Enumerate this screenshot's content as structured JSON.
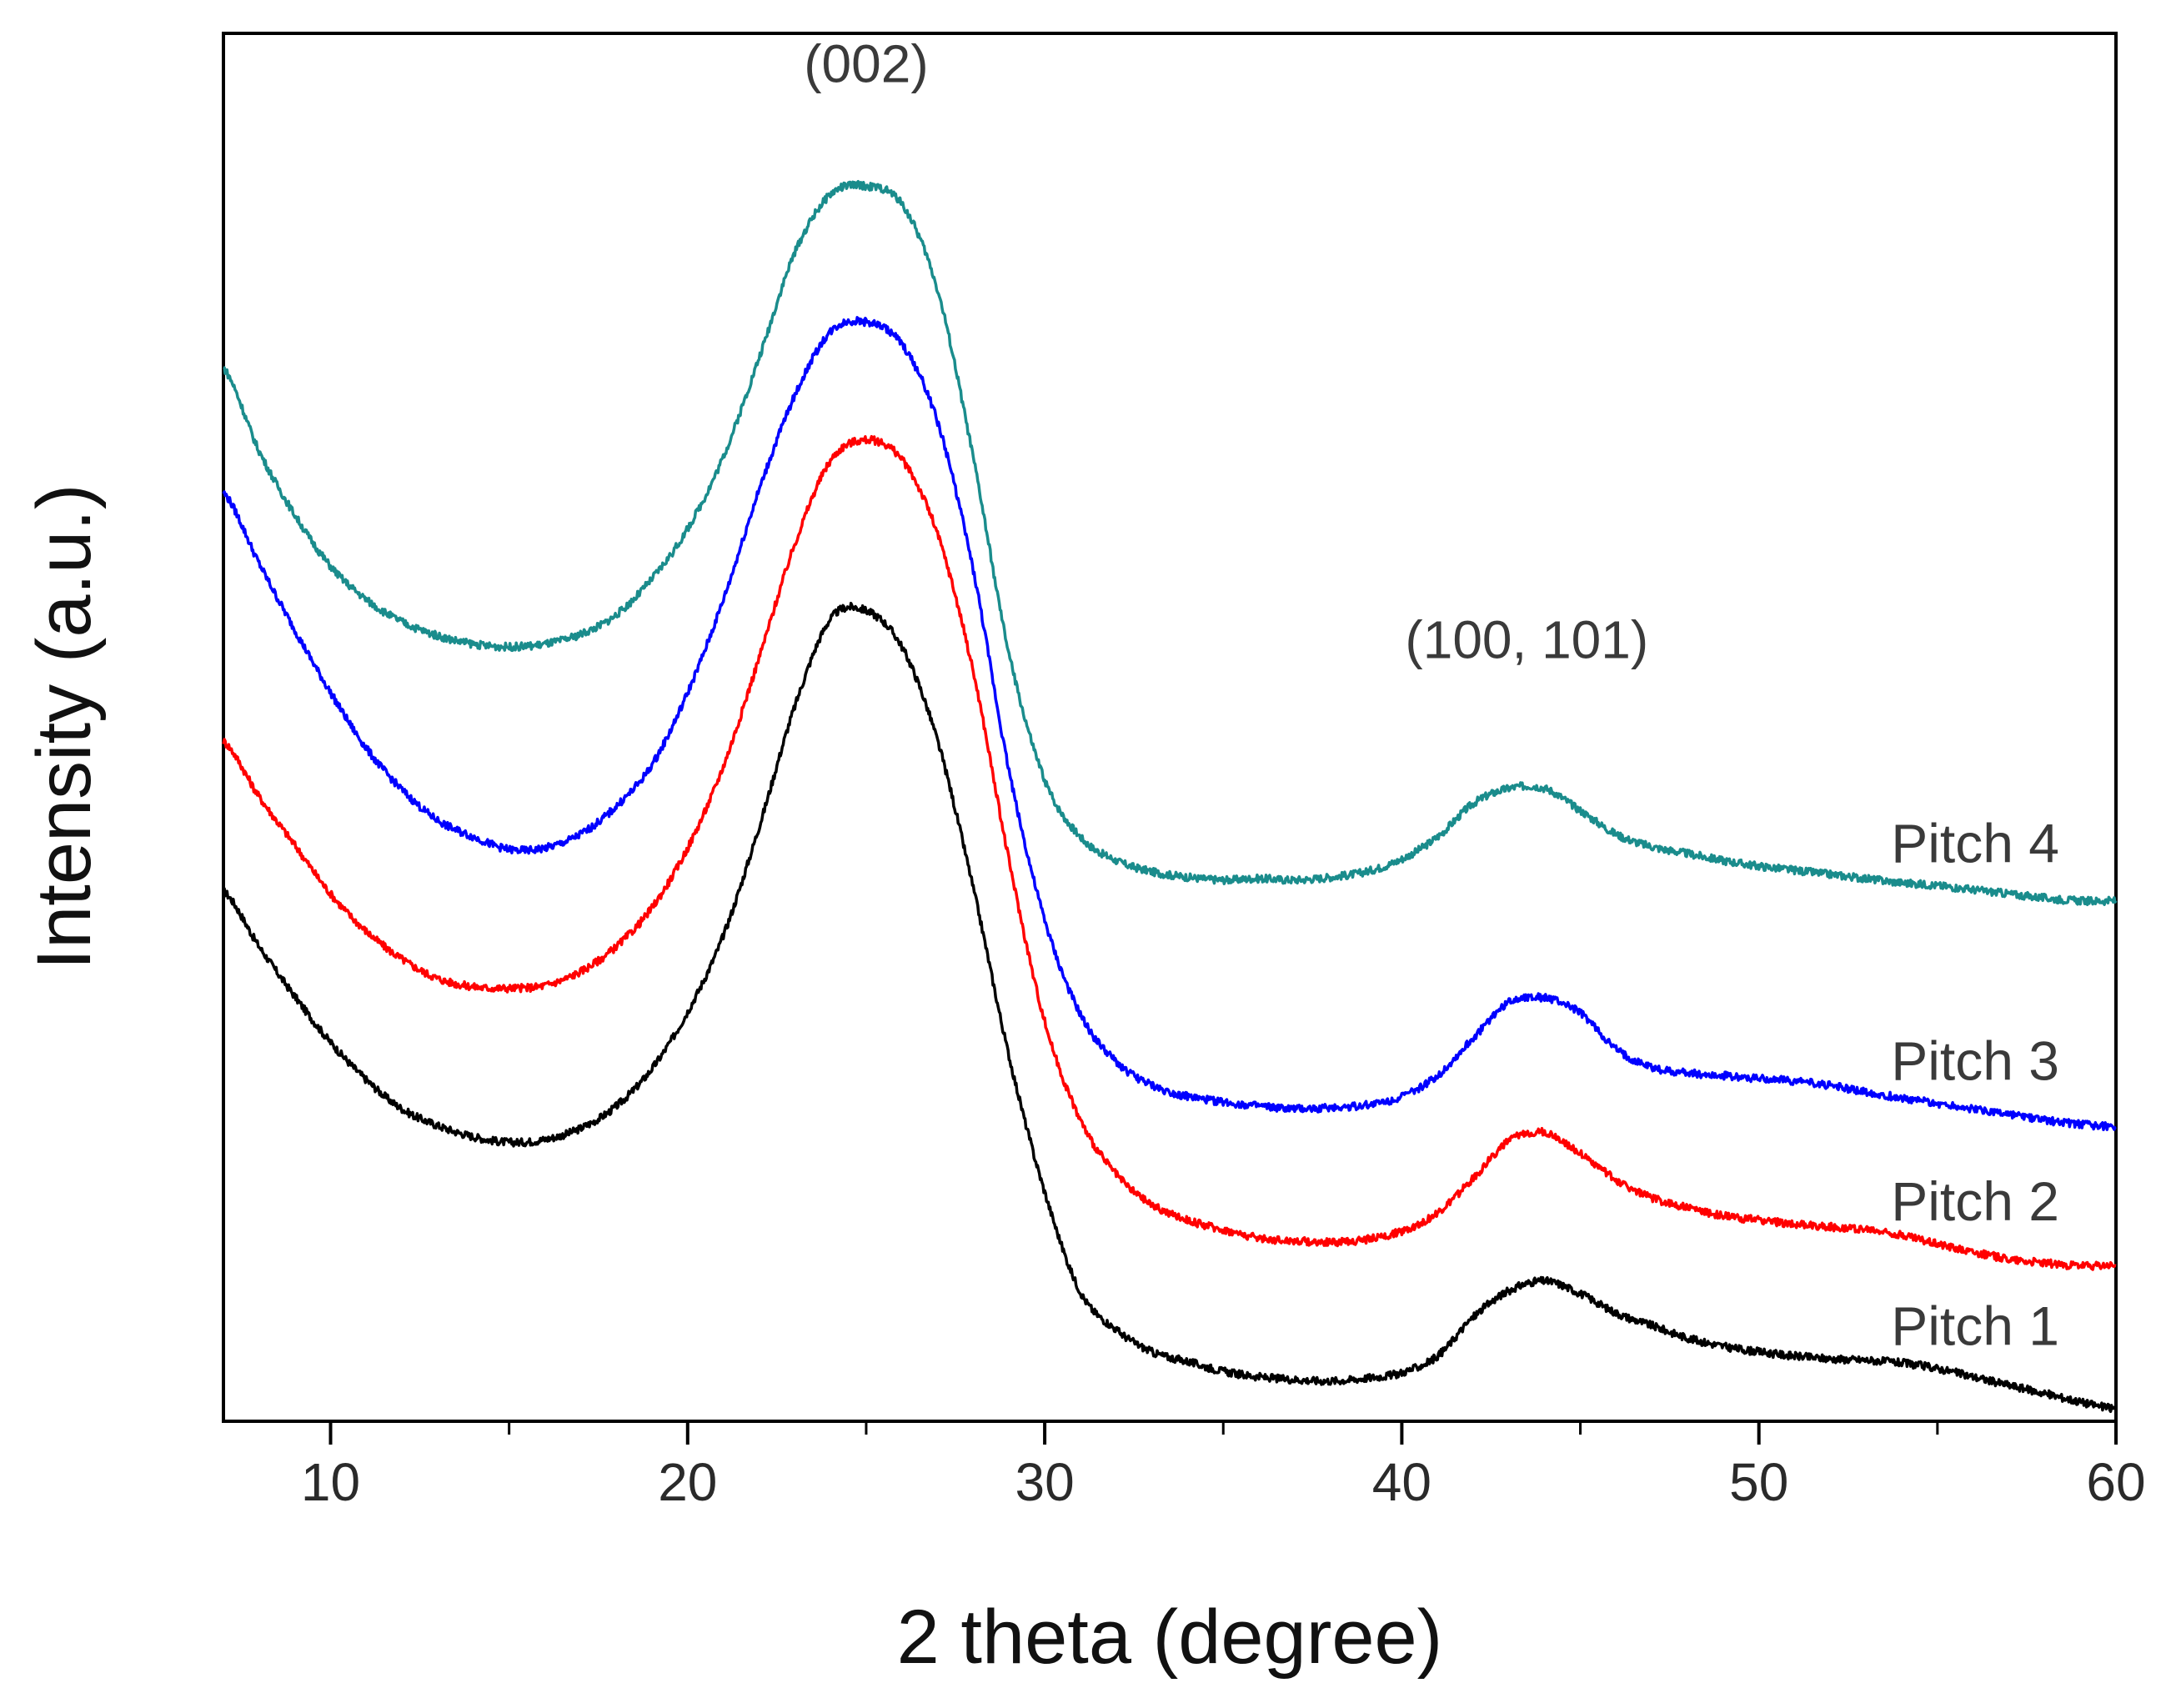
{
  "chart_data": {
    "type": "line",
    "title": "",
    "xlabel": "2 theta (degree)",
    "ylabel": "Intensity (a.u.)",
    "xlim": [
      7,
      60
    ],
    "ylim": [
      0,
      100
    ],
    "x_ticks": [
      10,
      20,
      30,
      40,
      50,
      60
    ],
    "x_tick_labels": [
      "10",
      "20",
      "30",
      "40",
      "50",
      "60"
    ],
    "y_ticks_shown": false,
    "grid": false,
    "annotations": [
      {
        "text": "(002)",
        "x": 25,
        "y": 96.5
      },
      {
        "text": "(100, 101)",
        "x": 43.5,
        "y": 55
      }
    ],
    "series": [
      {
        "name": "Pitch 1",
        "label": "Pitch 1",
        "color": "#000000",
        "x": [
          7,
          8,
          9,
          10,
          11,
          12,
          13,
          14,
          15,
          16,
          17,
          18,
          19,
          20,
          21,
          22,
          23,
          24,
          25,
          26,
          27,
          28,
          29,
          30,
          31,
          32,
          33,
          34,
          35,
          36,
          37,
          38,
          39,
          40,
          41,
          42,
          43,
          44,
          45,
          46,
          47,
          48,
          49,
          50,
          51,
          52,
          53,
          54,
          55,
          56,
          57,
          58,
          59,
          60
        ],
        "y": [
          38.2,
          34.2,
          30.6,
          27.3,
          24.6,
          22.5,
          21.3,
          20.5,
          20.1,
          20.3,
          21.1,
          22.7,
          25.4,
          29.5,
          35.0,
          42.8,
          51.5,
          57.8,
          58.4,
          55.8,
          49.0,
          38.4,
          26.3,
          16.5,
          9.3,
          6.6,
          5.0,
          4.3,
          3.6,
          3.2,
          3.0,
          2.9,
          3.1,
          3.5,
          4.7,
          7.5,
          9.4,
          10.1,
          9.2,
          7.8,
          6.9,
          6.0,
          5.4,
          5.0,
          4.7,
          4.5,
          4.4,
          4.2,
          3.8,
          3.2,
          2.6,
          2.0,
          1.4,
          0.9
        ]
      },
      {
        "name": "Pitch 2",
        "label": "Pitch 2",
        "color": "#ff0000",
        "x": [
          7,
          8,
          9,
          10,
          11,
          12,
          13,
          14,
          15,
          16,
          17,
          18,
          19,
          20,
          21,
          22,
          23,
          24,
          25,
          26,
          27,
          28,
          29,
          30,
          31,
          32,
          33,
          34,
          35,
          36,
          37,
          38,
          39,
          40,
          41,
          42,
          43,
          44,
          45,
          46,
          47,
          48,
          49,
          50,
          51,
          52,
          53,
          54,
          55,
          56,
          57,
          58,
          59,
          60
        ],
        "y": [
          49.0,
          45.0,
          41.5,
          38.0,
          35.3,
          33.3,
          31.9,
          31.3,
          31.2,
          31.4,
          32.4,
          34.2,
          37.0,
          41.3,
          47.2,
          55.0,
          63.2,
          69.2,
          70.7,
          69.3,
          63.9,
          54.0,
          40.4,
          28.8,
          21.7,
          17.8,
          15.6,
          14.5,
          13.8,
          13.2,
          13.0,
          12.9,
          13.1,
          13.7,
          15.0,
          17.5,
          20.2,
          20.8,
          19.3,
          17.4,
          16.1,
          15.4,
          14.8,
          14.5,
          14.2,
          14.0,
          13.8,
          13.4,
          12.8,
          12.2,
          11.7,
          11.4,
          11.2,
          11.2
        ]
      },
      {
        "name": "Pitch 3",
        "label": "Pitch 3",
        "color": "#0000ff",
        "x": [
          7,
          8,
          9,
          10,
          11,
          12,
          13,
          14,
          15,
          16,
          17,
          18,
          19,
          20,
          21,
          22,
          23,
          24,
          25,
          26,
          27,
          28,
          29,
          30,
          31,
          32,
          33,
          34,
          35,
          36,
          37,
          38,
          39,
          40,
          41,
          42,
          43,
          44,
          45,
          46,
          47,
          48,
          49,
          50,
          51,
          52,
          53,
          54,
          55,
          56,
          57,
          58,
          59,
          60
        ],
        "y": [
          66.9,
          61.8,
          57.0,
          52.5,
          48.5,
          45.5,
          43.3,
          42.1,
          41.2,
          41.3,
          42.3,
          44.3,
          47.3,
          52.5,
          59.2,
          67.1,
          73.9,
          78.5,
          79.2,
          77.6,
          72.0,
          61.3,
          46.9,
          36.1,
          29.3,
          25.9,
          24.2,
          23.4,
          23.0,
          22.7,
          22.5,
          22.6,
          22.8,
          23.4,
          24.9,
          27.6,
          30.2,
          30.5,
          29.4,
          26.8,
          25.5,
          25.1,
          24.9,
          24.7,
          24.5,
          24.2,
          23.7,
          23.3,
          22.9,
          22.5,
          22.1,
          21.7,
          21.4,
          21.2
        ]
      },
      {
        "name": "Pitch 4",
        "label": "Pitch 4",
        "color": "#1a8c8c",
        "x": [
          7,
          8,
          9,
          10,
          11,
          12,
          13,
          14,
          15,
          16,
          17,
          18,
          19,
          20,
          21,
          22,
          23,
          24,
          25,
          26,
          27,
          28,
          29,
          30,
          31,
          32,
          33,
          34,
          35,
          36,
          37,
          38,
          39,
          40,
          41,
          42,
          43,
          44,
          45,
          46,
          47,
          48,
          49,
          50,
          51,
          52,
          53,
          54,
          55,
          56,
          57,
          58,
          59,
          60
        ],
        "y": [
          75.9,
          69.9,
          65.3,
          61.6,
          59.2,
          57.6,
          56.6,
          56.0,
          55.8,
          56.0,
          56.7,
          58.1,
          60.7,
          64.3,
          69.5,
          76.6,
          84.2,
          88.4,
          89.0,
          87.7,
          81.5,
          69.4,
          55.3,
          46.2,
          42.1,
          40.4,
          39.6,
          39.2,
          39.0,
          39.1,
          39.0,
          39.2,
          39.6,
          40.5,
          42.1,
          44.5,
          45.6,
          45.6,
          44.0,
          42.3,
          41.4,
          40.9,
          40.4,
          40.0,
          39.7,
          39.4,
          39.1,
          38.8,
          38.6,
          38.3,
          38.0,
          37.7,
          37.5,
          37.5
        ]
      }
    ]
  }
}
